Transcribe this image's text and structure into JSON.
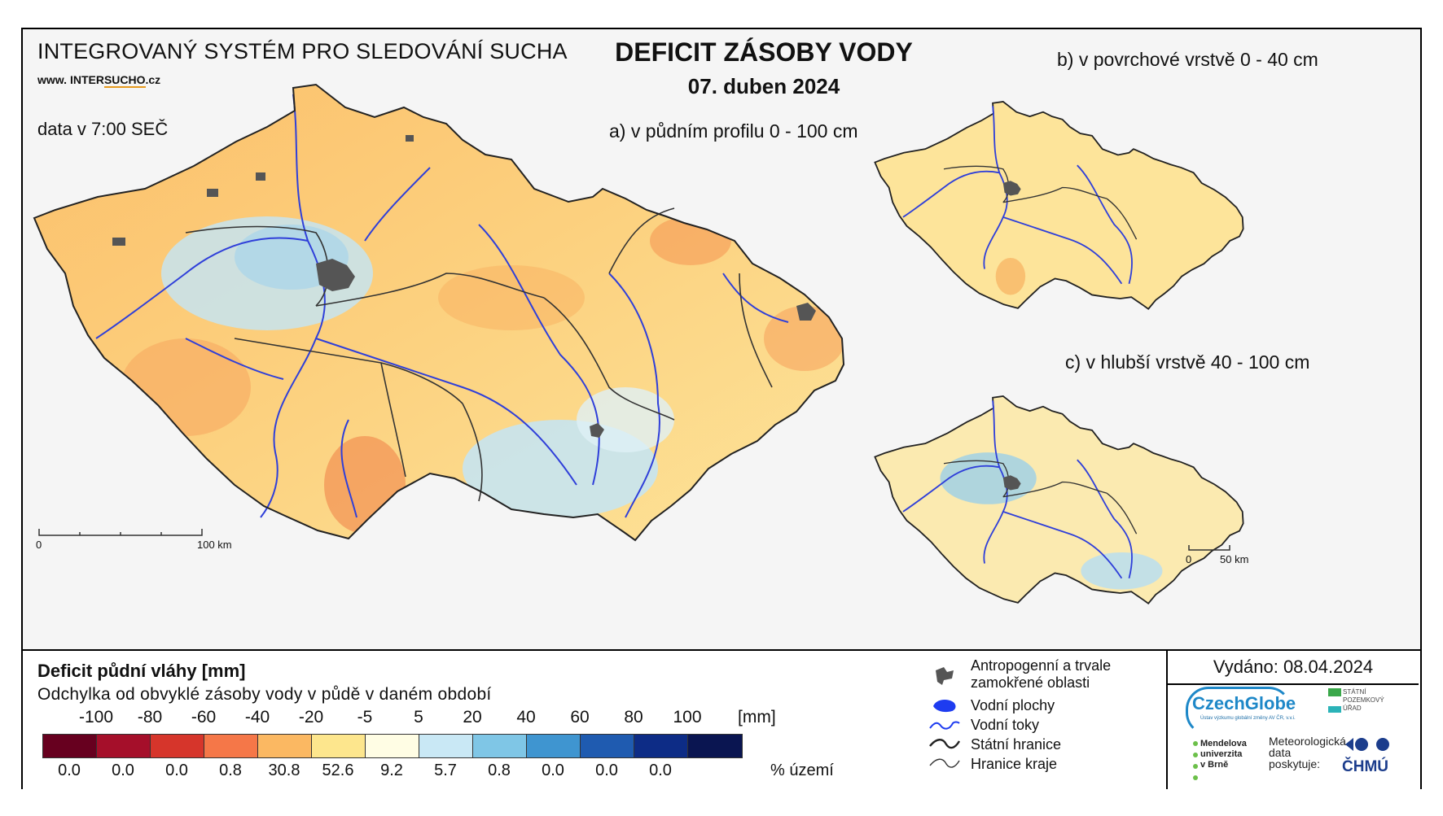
{
  "header": {
    "system_title": "INTEGROVANÝ SYSTÉM PRO SLEDOVÁNÍ SUCHA",
    "website_prefix": "www. ",
    "website_main_a": "INTER",
    "website_main_b": "SUCHO",
    "website_suffix": ".cz",
    "data_time": "data v 7:00 SEČ",
    "title": "DEFICIT ZÁSOBY VODY",
    "date": "07. duben 2024"
  },
  "maps": {
    "a_label": "a) v půdním profilu 0 - 100 cm",
    "b_label": "b) v povrchové vrstvě 0 - 40 cm",
    "c_label": "c) v hlubší vrstvě 40 - 100 cm",
    "scale_a_start": "0",
    "scale_a_end": "100 km",
    "scale_c_start": "0",
    "scale_c_end": "50 km"
  },
  "legend": {
    "title": "Deficit půdní vláhy  [mm]",
    "subtitle": "Odchylka od obvyklé zásoby vody v půdě v daném období",
    "unit_mm": "[mm]",
    "unit_pct": "% území",
    "ticks": [
      "-100",
      "-80",
      "-60",
      "-40",
      "-20",
      "-5",
      "5",
      "20",
      "40",
      "60",
      "80",
      "100"
    ],
    "colors": [
      "#67001f",
      "#a50f2a",
      "#d6352b",
      "#f57748",
      "#fbb862",
      "#fde68d",
      "#fffde4",
      "#c9e8f5",
      "#7fc6e6",
      "#3f95d0",
      "#1f5bb0",
      "#0d2c86",
      "#0a1551"
    ],
    "percentages": [
      "0.0",
      "0.0",
      "0.0",
      "0.8",
      "30.8",
      "52.6",
      "9.2",
      "5.7",
      "0.8",
      "0.0",
      "0.0",
      "0.0"
    ]
  },
  "symbols": {
    "anthropogenic": "Antropogenní a trvale zamokřené oblasti",
    "anthropogenic_line1": "Antropogenní a trvale",
    "anthropogenic_line2": "zamokřené oblasti",
    "water_bodies": "Vodní plochy",
    "water_courses": "Vodní toky",
    "state_border": "Státní hranice",
    "region_border": "Hranice kraje"
  },
  "footer": {
    "issued": "Vydáno: 08.04.2024",
    "czechglobe": "CzechGlobe",
    "czechglobe_sub": "Ústav výzkumu globální změny AV ČR, v.v.i.",
    "spu_line1": "STÁTNÍ",
    "spu_line2": "POZEMKOVÝ",
    "spu_line3": "ÚŘAD",
    "mendel_line1": "Mendelova",
    "mendel_line2": "univerzita",
    "mendel_line3": "v Brně",
    "meteo_line1": "Meteorologická",
    "meteo_line2": "data",
    "meteo_line3": "poskytuje:",
    "chmu": "ČHMÚ"
  }
}
